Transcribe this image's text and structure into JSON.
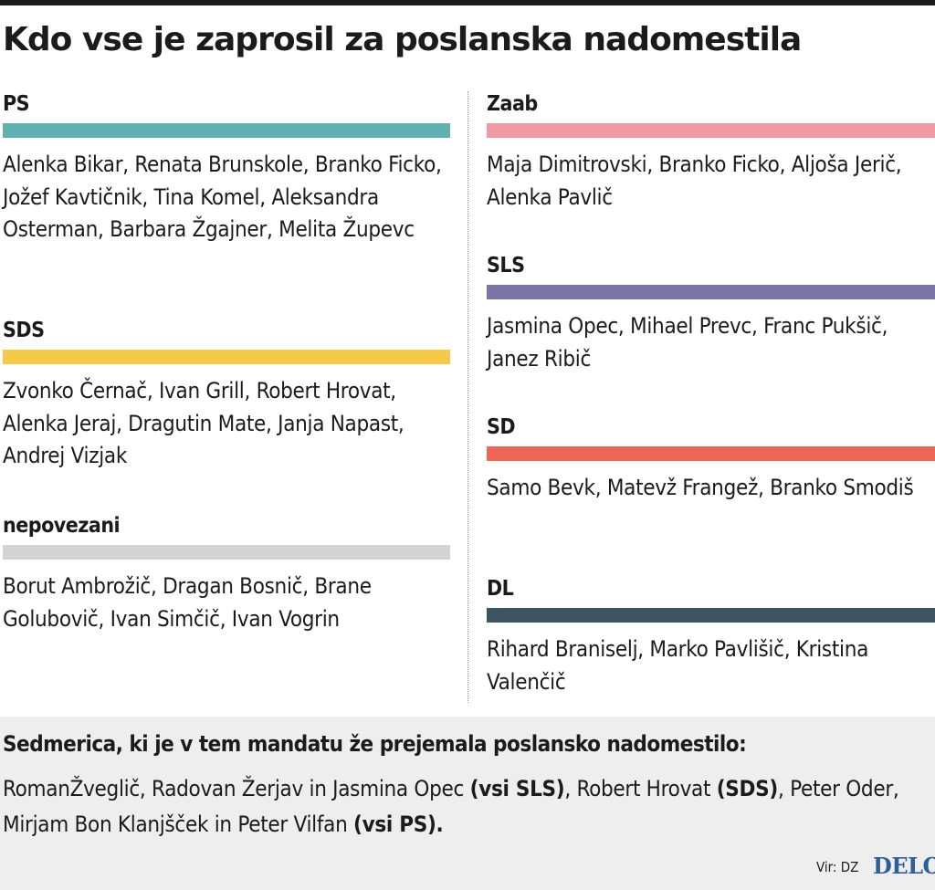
{
  "title": "Kdo vse je zaprosil za poslanska nadomestila",
  "groups_left": [
    {
      "name": "PS",
      "color": "#5fb1b3",
      "members": "Alenka Bikar, Renata Brunskole, Branko Ficko, Jožef Kavtičnik, Tina Komel, Aleksandra Osterman, Barbara Žgajner, Melita Župevc"
    },
    {
      "name": "SDS",
      "color": "#f7c948",
      "members": "Zvonko Černač, Ivan Grill, Robert Hrovat, Alenka Jeraj, Dragutin Mate, Janja Napast, Andrej Vizjak"
    },
    {
      "name": "nepovezani",
      "color": "#d3d3d3",
      "members": "Borut Ambrožič, Dragan Bosnič, Brane Golubovič, Ivan Simčič, Ivan Vogrin"
    }
  ],
  "groups_right": [
    {
      "name": "Zaab",
      "color": "#f09aa6",
      "members": "Maja Dimitrovski, Branko Ficko, Aljoša Jerič, Alenka Pavlič"
    },
    {
      "name": "SLS",
      "color": "#7a76a6",
      "members": "Jasmina Opec, Mihael Prevc, Franc Pukšič, Janez Ribič"
    },
    {
      "name": "SD",
      "color": "#ee6655",
      "members": "Samo Bevk, Matevž Frangež, Branko Smodiš"
    },
    {
      "name": "DL",
      "color": "#3d5562",
      "members": "Rihard Braniselj, Marko Pavlišič, Kristina Valenčič"
    }
  ],
  "footer": {
    "heading": "Sedmerica, ki je v tem mandatu že prejemala poslansko nadomestilo:",
    "part1": "RomanŽveglič, Radovan Žerjav in Jasmina Opec ",
    "part1_bold": "(vsi SLS)",
    "part2": ", Robert Hrovat ",
    "part2_bold": "(SDS)",
    "part3": ", Peter Oder, Mirjam Bon Klanjšček in Peter Vilfan ",
    "part3_bold": "(vsi PS)."
  },
  "source": "Vir: DZ",
  "logo": "DELO"
}
